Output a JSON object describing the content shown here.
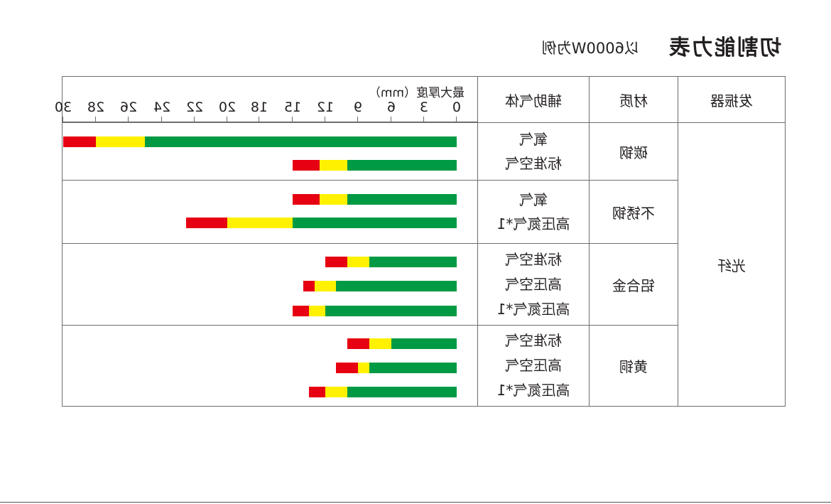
{
  "header": {
    "title": "切割能力表",
    "subtitle": "以6000W为例"
  },
  "columns": {
    "laser": "发振器",
    "material": "材质",
    "gas": "辅助气体",
    "thickness": "最大厚度（mm）"
  },
  "laser_type": "光纤",
  "axis_ticks": [
    0,
    3,
    6,
    9,
    12,
    15,
    18,
    20,
    22,
    24,
    26,
    28,
    30
  ],
  "colors": {
    "green": "#009a44",
    "yellow": "#fff100",
    "red": "#e60012",
    "border": "#6d6d6d",
    "text": "#231f20"
  },
  "chart_data": {
    "type": "bar",
    "orientation": "horizontal",
    "xlabel": "最大厚度（mm）",
    "xlim": [
      0,
      30
    ],
    "x_ticks": [
      0,
      3,
      6,
      9,
      12,
      15,
      18,
      20,
      22,
      24,
      26,
      28,
      30
    ],
    "segment_colors": [
      "green",
      "yellow",
      "red"
    ],
    "groups": [
      {
        "material": "碳钢",
        "rows": [
          {
            "gas": "氧气",
            "green": 25,
            "yellow": 28,
            "red": 30
          },
          {
            "gas": "标准空气",
            "green": 10,
            "yellow": 12.5,
            "red": 15
          }
        ]
      },
      {
        "material": "不锈钢",
        "rows": [
          {
            "gas": "氧气",
            "green": 10,
            "yellow": 12.5,
            "red": 15
          },
          {
            "gas": "高压氮气*1",
            "green": 15,
            "yellow": 20,
            "red": 22.5
          }
        ]
      },
      {
        "material": "铝合金",
        "rows": [
          {
            "gas": "标准空气",
            "green": 8,
            "yellow": 10,
            "red": 12
          },
          {
            "gas": "高压空气",
            "green": 11,
            "yellow": 13,
            "red": 14
          },
          {
            "gas": "高压氮气*1",
            "green": 12,
            "yellow": 13.5,
            "red": 15
          }
        ]
      },
      {
        "material": "黄铜",
        "rows": [
          {
            "gas": "标准空气",
            "green": 6,
            "yellow": 8,
            "red": 10
          },
          {
            "gas": "高压空气",
            "green": 8,
            "yellow": 9,
            "red": 11
          },
          {
            "gas": "高压氮气*1",
            "green": 10,
            "yellow": 12,
            "red": 13.5
          }
        ]
      }
    ]
  }
}
